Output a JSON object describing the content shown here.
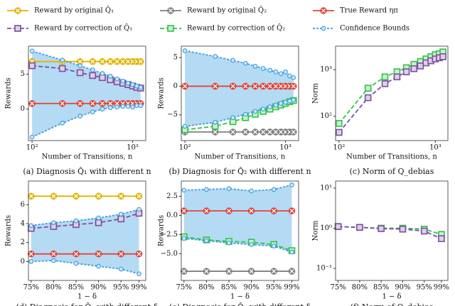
{
  "chart_data": [
    {
      "type": "line",
      "title": "(a) Diagnosis Q̂₁ with different n",
      "xlabel": "Number of Transitions, n",
      "ylabel": "Rewards",
      "x": [
        100,
        200,
        300,
        400,
        500,
        600,
        700,
        800,
        900,
        1000,
        1100,
        1200
      ],
      "xlog": true,
      "xlim": [
        92,
        1350
      ],
      "xticks": [
        {
          "value": 100,
          "label": "10²"
        },
        {
          "value": 1000,
          "label": "10³"
        }
      ],
      "ylim": [
        -4.5,
        9
      ],
      "yticks": [
        0,
        5
      ],
      "series": [
        {
          "name": "Reward by original Q̂₁",
          "color": "#e0b400",
          "marker": "x",
          "dashed": false,
          "values": [
            6.8,
            6.8,
            6.8,
            6.8,
            6.8,
            6.8,
            6.8,
            6.8,
            6.8,
            6.8,
            6.8,
            6.8
          ]
        },
        {
          "name": "Reward by correction of Q̂₁",
          "color": "#7b4f9d",
          "marker": "square",
          "dashed": true,
          "values": [
            6.2,
            5.8,
            5.2,
            4.8,
            4.5,
            4.2,
            3.9,
            3.7,
            3.5,
            3.3,
            3.1,
            3.0
          ]
        },
        {
          "name": "True Reward ηπ",
          "color": "#e0443a",
          "marker": "x",
          "dashed": false,
          "values": [
            0.8,
            0.8,
            0.8,
            0.8,
            0.8,
            0.8,
            0.8,
            0.8,
            0.8,
            0.8,
            0.8,
            0.8
          ]
        },
        {
          "name": "Confidence Bounds",
          "color": "#3b9ddd",
          "fill": "#a8d3f2",
          "marker": "circle",
          "dashed": true,
          "values": [
            8.3,
            7.0,
            6.2,
            5.6,
            5.1,
            4.7,
            4.3,
            4.0,
            3.7,
            3.5,
            3.3,
            3.1
          ],
          "lower": [
            -4.0,
            -2.0,
            -1.0,
            -0.4,
            0.0,
            0.2,
            0.3,
            0.4,
            0.4,
            0.3,
            0.5,
            0.5
          ]
        }
      ]
    },
    {
      "type": "line",
      "title": "(b) Diagnosis for Q̂₂ with different n",
      "xlabel": "Number of Transitions, n",
      "ylabel": "Rewards",
      "x": [
        100,
        200,
        300,
        400,
        500,
        600,
        700,
        800,
        900,
        1000,
        1100,
        1200
      ],
      "xlog": true,
      "xlim": [
        92,
        1350
      ],
      "xticks": [
        {
          "value": 100,
          "label": "10²"
        },
        {
          "value": 1000,
          "label": "10³"
        }
      ],
      "ylim": [
        -9.5,
        7
      ],
      "yticks": [
        {
          "value": -5,
          "label": "−5"
        },
        0,
        5
      ],
      "series": [
        {
          "name": "Reward by original Q̂₂",
          "color": "#808080",
          "marker": "x",
          "dashed": false,
          "values": [
            -8,
            -8,
            -8,
            -8,
            -8,
            -8,
            -8,
            -8,
            -8,
            -8,
            -8,
            -8
          ]
        },
        {
          "name": "Reward by correction of Q̂₂",
          "color": "#2fc24a",
          "marker": "square",
          "dashed": true,
          "values": [
            -7.6,
            -7.0,
            -6.2,
            -5.5,
            -4.9,
            -4.4,
            -4.0,
            -3.6,
            -3.3,
            -3.0,
            -2.7,
            -2.5
          ]
        },
        {
          "name": "True Reward ηπ",
          "color": "#e0443a",
          "marker": "x",
          "dashed": false,
          "values": [
            0,
            0,
            0,
            0,
            0,
            0,
            0,
            0,
            0,
            0,
            0,
            0
          ]
        },
        {
          "name": "Confidence Bounds",
          "color": "#3b9ddd",
          "fill": "#a8d3f2",
          "marker": "circle",
          "dashed": true,
          "values": [
            6.2,
            5.2,
            4.5,
            4.0,
            3.5,
            3.1,
            2.8,
            2.5,
            2.2,
            2.5,
            1.8,
            1.5
          ],
          "lower": [
            -7.0,
            -6.3,
            -5.5,
            -4.9,
            -4.4,
            -4.0,
            -3.6,
            -3.3,
            -3.0,
            -2.8,
            -2.6,
            -2.4
          ]
        }
      ]
    },
    {
      "type": "line",
      "title": "(c) Norm of Q_debias",
      "xlabel": "Number of Transitions, n",
      "ylabel": "Norm",
      "x": [
        100,
        200,
        300,
        400,
        500,
        600,
        700,
        800,
        900,
        1000,
        1100,
        1200
      ],
      "xlog": true,
      "xlim": [
        92,
        1350
      ],
      "xticks": [
        {
          "value": 100,
          "label": "10²"
        },
        {
          "value": 1000,
          "label": "10³"
        }
      ],
      "ylim": [
        30,
        3200
      ],
      "ylog": true,
      "yticks": [
        {
          "value": 100,
          "label": "10²"
        },
        {
          "value": 1000,
          "label": "10³"
        }
      ],
      "series": [
        {
          "name": "Reward by correction of Q̂₂",
          "color": "#2fc24a",
          "marker": "square",
          "dashed": true,
          "values": [
            70,
            400,
            700,
            900,
            1100,
            1300,
            1500,
            1700,
            1900,
            2100,
            2200,
            2400
          ]
        },
        {
          "name": "Reward by correction of Q̂₁",
          "color": "#7b4f9d",
          "marker": "square",
          "dashed": true,
          "values": [
            45,
            250,
            500,
            700,
            900,
            1050,
            1200,
            1400,
            1550,
            1700,
            1800,
            1900
          ]
        }
      ]
    },
    {
      "type": "line",
      "title": "(d) Diagnosis for Q̂₁ with different δ",
      "xlabel": "1 − δ",
      "ylabel": "Rewards",
      "x": [
        75,
        80,
        85,
        90,
        95,
        99
      ],
      "xlim": [
        74.4,
        100.5
      ],
      "xticks": [
        {
          "value": 75,
          "label": "75%"
        },
        {
          "value": 80,
          "label": "80%"
        },
        {
          "value": 85,
          "label": "85%"
        },
        {
          "value": 90,
          "label": "90%"
        },
        {
          "value": 95,
          "label": "95%"
        },
        {
          "value": 99,
          "label": "99%"
        }
      ],
      "ylim": [
        -2,
        8.5
      ],
      "yticks": [
        0,
        2,
        4,
        6
      ],
      "series": [
        {
          "name": "Reward by original Q̂₁",
          "color": "#e0b400",
          "marker": "x",
          "dashed": false,
          "values": [
            6.9,
            6.9,
            6.9,
            6.9,
            6.9,
            6.9
          ]
        },
        {
          "name": "Reward by correction of Q̂₁",
          "color": "#7b4f9d",
          "marker": "square",
          "dashed": true,
          "values": [
            3.5,
            3.7,
            3.9,
            4.1,
            4.5,
            5.1
          ]
        },
        {
          "name": "True Reward ηπ",
          "color": "#e0443a",
          "marker": "x",
          "dashed": false,
          "values": [
            0.8,
            0.8,
            0.8,
            0.8,
            0.8,
            0.8
          ]
        },
        {
          "name": "Confidence Bounds",
          "color": "#3b9ddd",
          "fill": "#a8d3f2",
          "marker": "circle",
          "dashed": true,
          "values": [
            3.8,
            4.1,
            4.3,
            4.6,
            5.0,
            5.5
          ],
          "lower": [
            0.0,
            0.1,
            -0.2,
            -0.5,
            -0.8,
            -1.3
          ]
        }
      ]
    },
    {
      "type": "line",
      "title": "(e) Diagnosis for Q̂₂ with different δ",
      "xlabel": "1 − δ",
      "ylabel": "Rewards",
      "x": [
        75,
        80,
        85,
        90,
        95,
        99
      ],
      "xlim": [
        74.4,
        100.5
      ],
      "xticks": [
        {
          "value": 75,
          "label": "75%"
        },
        {
          "value": 80,
          "label": "80%"
        },
        {
          "value": 85,
          "label": "85%"
        },
        {
          "value": 90,
          "label": "90%"
        },
        {
          "value": 95,
          "label": "95%"
        },
        {
          "value": 99,
          "label": "99%"
        }
      ],
      "ylim": [
        -8.5,
        4.5
      ],
      "yticks": [
        {
          "value": -5,
          "label": "−5.0"
        },
        {
          "value": -2.5,
          "label": "−2.5"
        },
        {
          "value": 0,
          "label": "0.0"
        },
        {
          "value": 2.5,
          "label": "2.5"
        }
      ],
      "series": [
        {
          "name": "Reward by original Q̂₂",
          "color": "#808080",
          "marker": "x",
          "dashed": false,
          "values": [
            -7.3,
            -7.3,
            -7.3,
            -7.3,
            -7.3,
            -7.3
          ]
        },
        {
          "name": "Reward by correction of Q̂₂",
          "color": "#2fc24a",
          "marker": "square",
          "dashed": true,
          "values": [
            -2.8,
            -3.2,
            -3.4,
            -3.5,
            -3.8,
            -4.6
          ]
        },
        {
          "name": "True Reward ηπ",
          "color": "#e0443a",
          "marker": "x",
          "dashed": false,
          "values": [
            0.6,
            0.6,
            0.6,
            0.6,
            0.6,
            0.6
          ]
        },
        {
          "name": "Confidence Bounds",
          "color": "#3b9ddd",
          "fill": "#a8d3f2",
          "marker": "circle",
          "dashed": true,
          "values": [
            3.3,
            3.4,
            3.5,
            3.2,
            3.4,
            4.0
          ],
          "lower": [
            -3.0,
            -3.3,
            -3.6,
            -3.8,
            -4.0,
            -4.8
          ]
        }
      ]
    },
    {
      "type": "line",
      "title": "(f) Norm of Q_debias",
      "xlabel": "1 − δ",
      "ylabel": "Norm",
      "x": [
        75,
        80,
        85,
        90,
        95,
        99
      ],
      "xlim": [
        74.4,
        100.5
      ],
      "xticks": [
        {
          "value": 75,
          "label": "75%"
        },
        {
          "value": 80,
          "label": "80%"
        },
        {
          "value": 85,
          "label": "85%"
        },
        {
          "value": 90,
          "label": "90%"
        },
        {
          "value": 95,
          "label": "95%"
        },
        {
          "value": 99,
          "label": "99%"
        }
      ],
      "ylim": [
        0.05,
        15
      ],
      "ylog": true,
      "yticks": [
        {
          "value": 0.1,
          "label": "10⁻¹"
        },
        {
          "value": 1,
          "label": "10⁰"
        },
        {
          "value": 10,
          "label": "10¹"
        }
      ],
      "series": [
        {
          "name": "Reward by correction of Q̂₂",
          "color": "#2fc24a",
          "marker": "square",
          "dashed": true,
          "values": [
            1.1,
            1.05,
            1.0,
            1.0,
            0.95,
            0.7
          ]
        },
        {
          "name": "Reward by correction of Q̂₁",
          "color": "#7b4f9d",
          "marker": "square",
          "dashed": true,
          "values": [
            1.1,
            1.05,
            0.98,
            0.95,
            0.85,
            0.55
          ]
        }
      ]
    }
  ]
}
